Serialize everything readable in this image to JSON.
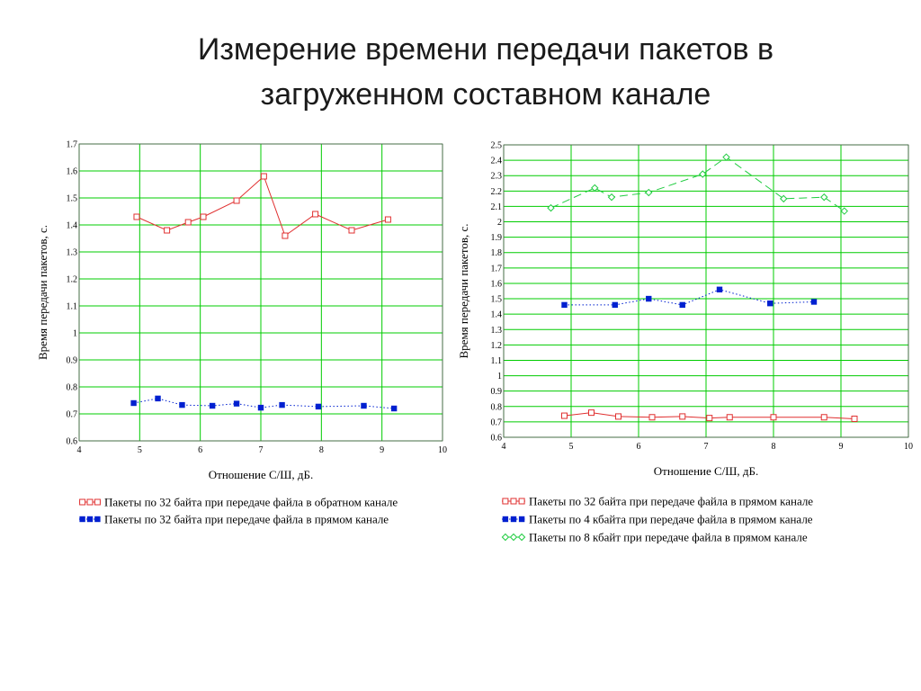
{
  "title": {
    "line1": "Измерение времени передачи пакетов в",
    "line2": "загруженном составном канале"
  },
  "colors": {
    "grid": "#00cc00",
    "red": "#e03030",
    "blue": "#0020d0",
    "green": "#20cc40"
  },
  "chart_data": [
    {
      "type": "line",
      "xlabel": "Отношение С/Ш, дБ.",
      "ylabel": "Время передачи пакетов, с.",
      "xlim": [
        4,
        10
      ],
      "ylim": [
        0.6,
        1.7
      ],
      "xticks": [
        4,
        5,
        6,
        7,
        8,
        9,
        10
      ],
      "yticks": [
        0.6,
        0.7,
        0.8,
        0.9,
        1,
        1.1,
        1.2,
        1.3,
        1.4,
        1.5,
        1.6,
        1.7
      ],
      "grid": true,
      "legend_position": "bottom",
      "series": [
        {
          "name": "Пакеты по 32 байта при передаче файла в обратном канале",
          "color": "#e03030",
          "marker": "open-square",
          "line": "solid",
          "x": [
            4.95,
            5.45,
            5.8,
            6.05,
            6.6,
            7.05,
            7.4,
            7.9,
            8.5,
            9.1
          ],
          "y": [
            1.43,
            1.38,
            1.41,
            1.43,
            1.49,
            1.58,
            1.36,
            1.44,
            1.38,
            1.42
          ]
        },
        {
          "name": "Пакеты по 32 байта при передаче файла в прямом канале",
          "color": "#0020d0",
          "marker": "filled-square",
          "line": "dotted",
          "x": [
            4.9,
            5.3,
            5.7,
            6.2,
            6.6,
            7.0,
            7.35,
            7.95,
            8.7,
            9.2
          ],
          "y": [
            0.74,
            0.757,
            0.733,
            0.73,
            0.738,
            0.723,
            0.733,
            0.727,
            0.73,
            0.72
          ]
        }
      ]
    },
    {
      "type": "line",
      "xlabel": "Отношение С/Ш, дБ.",
      "ylabel": "Время передачи пакетов, с.",
      "xlim": [
        4,
        10
      ],
      "ylim": [
        0.6,
        2.5
      ],
      "xticks": [
        4,
        5,
        6,
        7,
        8,
        9,
        10
      ],
      "yticks": [
        0.6,
        0.7,
        0.8,
        0.9,
        1,
        1.1,
        1.2,
        1.3,
        1.4,
        1.5,
        1.6,
        1.7,
        1.8,
        1.9,
        2,
        2.1,
        2.2,
        2.3,
        2.4,
        2.5
      ],
      "grid": true,
      "legend_position": "bottom",
      "series": [
        {
          "name": "Пакеты по 32 байта при передаче файла в прямом канале",
          "color": "#e03030",
          "marker": "open-square",
          "line": "solid",
          "x": [
            4.9,
            5.3,
            5.7,
            6.2,
            6.65,
            7.05,
            7.35,
            8.0,
            8.75,
            9.2
          ],
          "y": [
            0.74,
            0.76,
            0.735,
            0.73,
            0.735,
            0.725,
            0.73,
            0.73,
            0.73,
            0.72
          ]
        },
        {
          "name": "Пакеты по 4 кбайта при передаче файла в прямом канале",
          "color": "#0020d0",
          "marker": "filled-square",
          "line": "dotted",
          "x": [
            4.9,
            5.65,
            6.15,
            6.65,
            7.2,
            7.95,
            8.6
          ],
          "y": [
            1.46,
            1.46,
            1.5,
            1.46,
            1.56,
            1.47,
            1.48
          ]
        },
        {
          "name": "Пакеты по 8 кбайт при передаче файла в прямом канале",
          "color": "#20cc40",
          "marker": "open-diamond",
          "line": "dashed",
          "x": [
            4.7,
            5.35,
            5.6,
            6.15,
            6.95,
            7.3,
            8.15,
            8.75,
            9.05
          ],
          "y": [
            2.09,
            2.22,
            2.16,
            2.19,
            2.31,
            2.42,
            2.15,
            2.16,
            2.07
          ]
        }
      ]
    }
  ]
}
